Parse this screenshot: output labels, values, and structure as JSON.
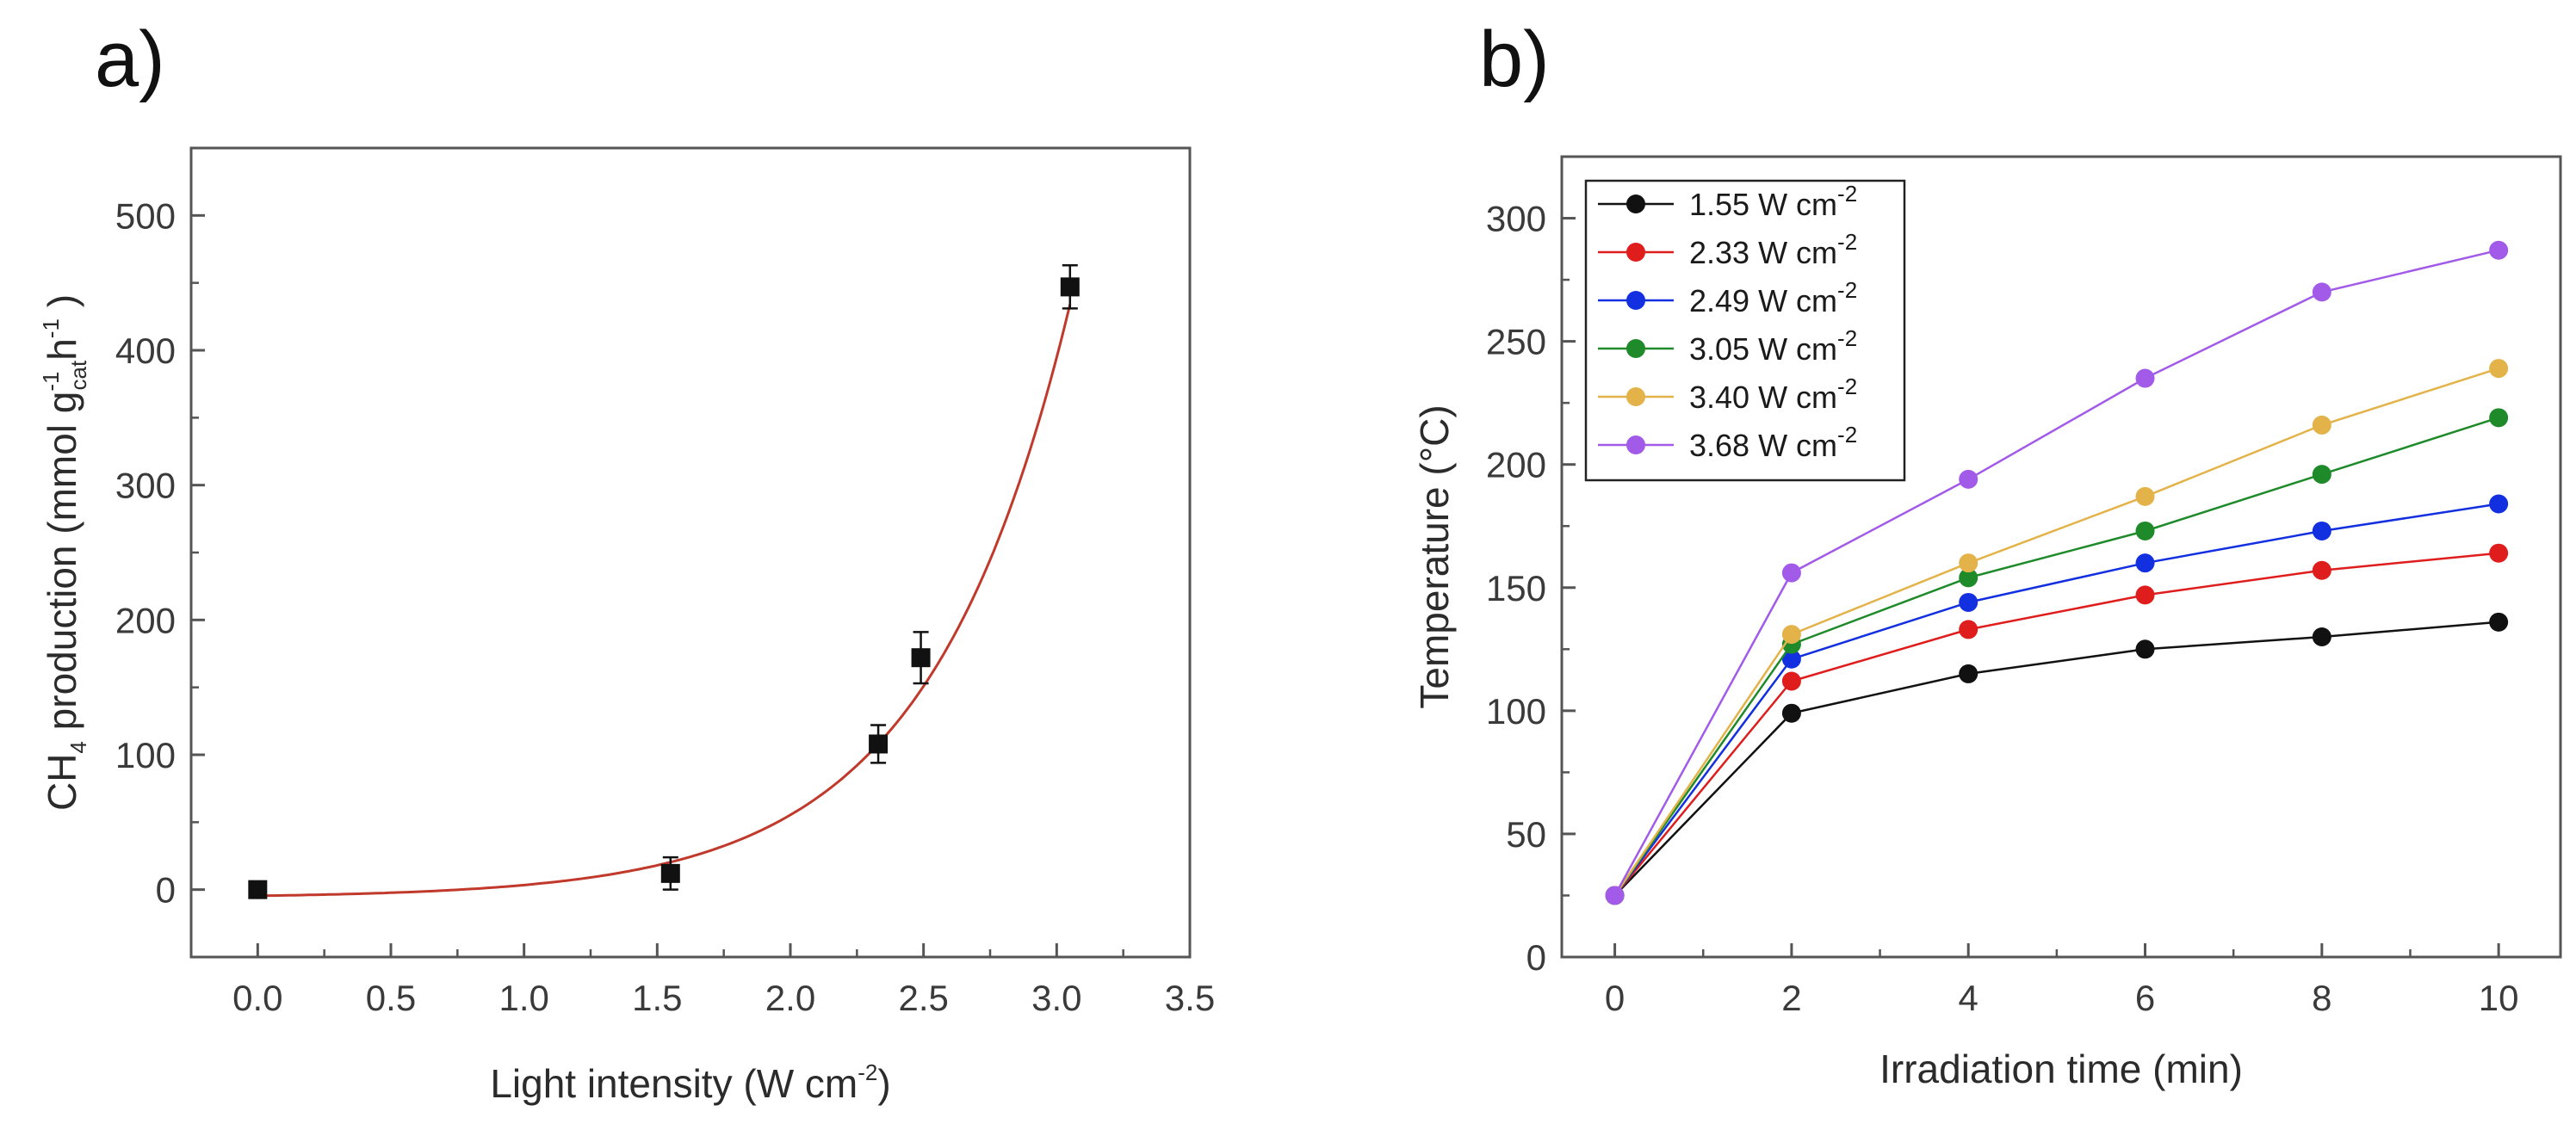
{
  "chart_data": [
    {
      "panel": "a)",
      "type": "scatter",
      "xlabel": {
        "main": "Light intensity (W cm",
        "sup": "-2",
        "tail": ")"
      },
      "ylabel": {
        "a": "CH",
        "a_sub": "4",
        "b": " production (mmol g",
        "b_sup": "-1",
        "b_sub": "cat",
        "c": "h",
        "c_sup": "-1",
        "d": " )"
      },
      "xlim": [
        -0.25,
        3.5
      ],
      "ylim": [
        -50,
        550
      ],
      "xticks": [
        "0.0",
        "0.5",
        "1.0",
        "1.5",
        "2.0",
        "2.5",
        "3.0",
        "3.5"
      ],
      "yticks": [
        "0",
        "100",
        "200",
        "300",
        "400",
        "500"
      ],
      "points": [
        {
          "x": 0.0,
          "y": 0,
          "err": 3
        },
        {
          "x": 1.55,
          "y": 12,
          "err": 12
        },
        {
          "x": 2.33,
          "y": 108,
          "err": 14
        },
        {
          "x": 2.49,
          "y": 172,
          "err": 19
        },
        {
          "x": 3.05,
          "y": 447,
          "err": 16
        }
      ],
      "fit": {
        "type": "exponential",
        "form": "y = A*exp(x/t) + y0",
        "A": 1.44,
        "t": 0.533,
        "y0": -6.0,
        "x_range": [
          0.0,
          3.05
        ]
      },
      "colors": {
        "points": "#111111",
        "fit": "#c0392b",
        "axis": "#555555"
      }
    },
    {
      "panel": "b)",
      "type": "line",
      "xlabel": "Irradiation time (min)",
      "ylabel": "Temperature (°C)",
      "xlim": [
        -0.6,
        10.7
      ],
      "ylim": [
        0,
        325
      ],
      "xticks": [
        "0",
        "2",
        "4",
        "6",
        "8",
        "10"
      ],
      "yticks": [
        "0",
        "50",
        "100",
        "150",
        "200",
        "250",
        "300"
      ],
      "x": [
        0,
        2,
        4,
        6,
        8,
        10
      ],
      "series": [
        {
          "name": "1.55 W cm",
          "sup": "-2",
          "color": "#111111",
          "values": [
            25,
            99,
            115,
            125,
            130,
            136
          ]
        },
        {
          "name": "2.33 W cm",
          "sup": "-2",
          "color": "#e01d1d",
          "values": [
            25,
            112,
            133,
            147,
            157,
            164
          ]
        },
        {
          "name": "2.49 W cm",
          "sup": "-2",
          "color": "#1230e0",
          "values": [
            25,
            121,
            144,
            160,
            173,
            184
          ]
        },
        {
          "name": "3.05 W cm",
          "sup": "-2",
          "color": "#1e8a2a",
          "values": [
            25,
            127,
            154,
            173,
            196,
            219
          ]
        },
        {
          "name": "3.40 W cm",
          "sup": "-2",
          "color": "#e3b34a",
          "values": [
            25,
            131,
            160,
            187,
            216,
            239
          ]
        },
        {
          "name": "3.68 W cm",
          "sup": "-2",
          "color": "#a25be8",
          "values": [
            25,
            156,
            194,
            235,
            270,
            287
          ]
        }
      ],
      "legend": "top-left",
      "colors": {
        "axis": "#555555"
      }
    }
  ]
}
